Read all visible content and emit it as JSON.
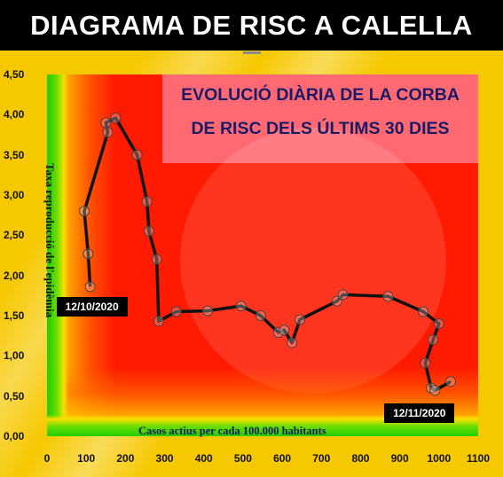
{
  "page_title": "DIAGRAMA DE RISC A CALELLA",
  "colors": {
    "title_bar": "#000000",
    "background": "#f6c800",
    "high_risk": "#ff1a00",
    "low_risk": "#22cc00",
    "panel": "#ff6a72",
    "line": "#111111",
    "title_text": "#1a1a66"
  },
  "chart_data": {
    "type": "line",
    "title_line1": "EVOLUCIÓ DIÀRIA DE LA CORBA",
    "title_line2": "DE RISC DELS ÚLTIMS 30 DIES",
    "xlabel": "Casos actius per cada 100.000 habitants",
    "ylabel": "Taxa reproducció de l'epidèmia",
    "xlim": [
      0,
      1100
    ],
    "ylim": [
      0,
      4.5
    ],
    "x_ticks": [
      "0",
      "100",
      "200",
      "300",
      "400",
      "500",
      "600",
      "700",
      "800",
      "900",
      "1000",
      "1100"
    ],
    "y_ticks": [
      "0,00",
      "0,50",
      "1,00",
      "1,50",
      "2,00",
      "2,50",
      "3,00",
      "3,50",
      "4,00",
      "4,50"
    ],
    "annotations": [
      {
        "text": "12/10/2020",
        "x": 110,
        "y": 1.86
      },
      {
        "text": "12/11/2020",
        "x": 1030,
        "y": 0.68
      }
    ],
    "points": [
      {
        "x": 110,
        "y": 1.86
      },
      {
        "x": 105,
        "y": 2.27
      },
      {
        "x": 95,
        "y": 2.8
      },
      {
        "x": 155,
        "y": 3.78
      },
      {
        "x": 150,
        "y": 3.9
      },
      {
        "x": 175,
        "y": 3.96
      },
      {
        "x": 230,
        "y": 3.5
      },
      {
        "x": 255,
        "y": 2.92
      },
      {
        "x": 260,
        "y": 2.55
      },
      {
        "x": 280,
        "y": 2.2
      },
      {
        "x": 285,
        "y": 1.43
      },
      {
        "x": 330,
        "y": 1.55
      },
      {
        "x": 410,
        "y": 1.56
      },
      {
        "x": 495,
        "y": 1.62
      },
      {
        "x": 545,
        "y": 1.5
      },
      {
        "x": 590,
        "y": 1.29
      },
      {
        "x": 605,
        "y": 1.32
      },
      {
        "x": 625,
        "y": 1.16
      },
      {
        "x": 645,
        "y": 1.45
      },
      {
        "x": 740,
        "y": 1.68
      },
      {
        "x": 755,
        "y": 1.76
      },
      {
        "x": 870,
        "y": 1.74
      },
      {
        "x": 960,
        "y": 1.55
      },
      {
        "x": 1000,
        "y": 1.4
      },
      {
        "x": 985,
        "y": 1.2
      },
      {
        "x": 965,
        "y": 0.91
      },
      {
        "x": 980,
        "y": 0.6
      },
      {
        "x": 990,
        "y": 0.57
      },
      {
        "x": 1030,
        "y": 0.68
      }
    ]
  }
}
